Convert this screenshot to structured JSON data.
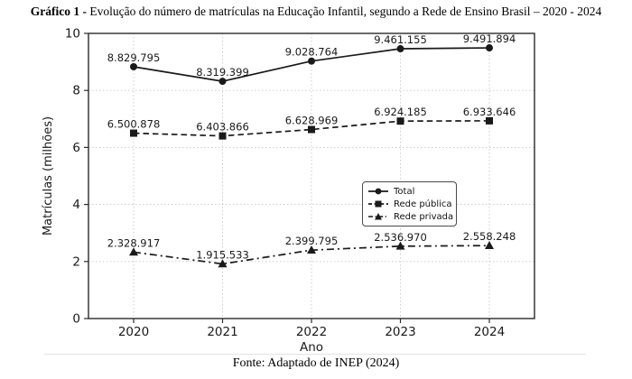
{
  "title": {
    "prefix": "Gráfico 1 -",
    "rest": "Evolução do número de matrículas na Educação Infantil, segundo a Rede de Ensino Brasil – 2020 - 2024"
  },
  "source": "Fonte: Adaptado de INEP (2024)",
  "chart_data": {
    "type": "line",
    "x_categories": [
      "2020",
      "2021",
      "2022",
      "2023",
      "2024"
    ],
    "xlabel": "Ano",
    "ylabel": "Matrículas (milhões)",
    "ylim": [
      0,
      10
    ],
    "yticks": [
      0,
      2,
      4,
      6,
      8,
      10
    ],
    "grid": true,
    "legend_position": "center-right",
    "series": [
      {
        "name": "Total",
        "marker": "circle",
        "line_style": "solid",
        "values": [
          8829795,
          8319399,
          9028764,
          9461155,
          9491894
        ],
        "point_labels": [
          "8.829.795",
          "8.319.399",
          "9.028.764",
          "9.461.155",
          "9.491.894"
        ]
      },
      {
        "name": "Rede pública",
        "marker": "square",
        "line_style": "dashed",
        "values": [
          6500878,
          6403866,
          6628969,
          6924185,
          6933646
        ],
        "point_labels": [
          "6.500.878",
          "6.403.866",
          "6.628.969",
          "6.924.185",
          "6.933.646"
        ]
      },
      {
        "name": "Rede privada",
        "marker": "triangle",
        "line_style": "dashdot",
        "values": [
          2328917,
          1915533,
          2399795,
          2536970,
          2558248
        ],
        "point_labels": [
          "2.328.917",
          "1.915.533",
          "2.399.795",
          "2.536.970",
          "2.558.248"
        ]
      }
    ],
    "colors": {
      "series": "#1a1a1a",
      "grid": "#c8c8c8",
      "spine": "#2b2b2b"
    }
  }
}
